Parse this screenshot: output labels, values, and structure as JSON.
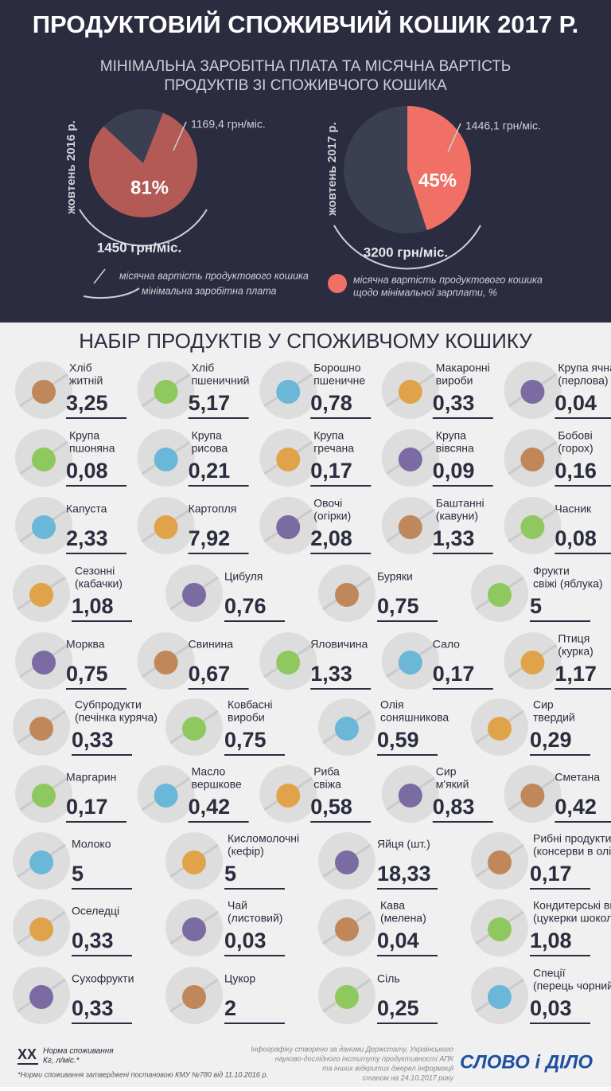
{
  "header": {
    "title": "ПРОДУКТОВИЙ СПОЖИВЧИЙ КОШИК 2017 Р.",
    "subtitle": [
      "МІНІМАЛЬНА ЗАРОБІТНА ПЛАТА ТА МІСЯЧНА ВАРТІСТЬ",
      "ПРОДУКТІВ ЗІ СПОЖИВЧОГО КОШИКА"
    ]
  },
  "pies": [
    {
      "period": "жовтень 2016 р.",
      "percent": 81,
      "percent_label": "81%",
      "basket_cost": "1169,4 грн/міс.",
      "min_wage": "1450 грн/міс."
    },
    {
      "period": "жовтень 2017 р.",
      "percent": 45,
      "percent_label": "45%",
      "basket_cost": "1446,1 грн/міс.",
      "min_wage": "3200 грн/міс."
    }
  ],
  "legend": {
    "arc_lines": [
      "місячна вартість продуктового кошика",
      "мінімальна заробітна плата"
    ],
    "dot_lines": [
      "місячна вартість продуктового кошика",
      "щодо  мінімальної зарплати, %"
    ]
  },
  "products": {
    "title": "НАБІР ПРОДУКТІВ У СПОЖИВЧОМУ КОШИКУ",
    "rows": [
      [
        {
          "name": [
            "Хліб",
            "житній"
          ],
          "value": "3,25"
        },
        {
          "name": [
            "Хліб",
            "пшеничний"
          ],
          "value": "5,17"
        },
        {
          "name": [
            "Борошно",
            "пшеничне"
          ],
          "value": "0,78"
        },
        {
          "name": [
            "Макаронні",
            "вироби"
          ],
          "value": "0,33"
        },
        {
          "name": [
            "Крупа ячна",
            "(перлова)"
          ],
          "value": "0,04"
        }
      ],
      [
        {
          "name": [
            "Крупа",
            "пшоняна"
          ],
          "value": "0,08"
        },
        {
          "name": [
            "Крупа",
            "рисова"
          ],
          "value": "0,21"
        },
        {
          "name": [
            "Крупа",
            "гречана"
          ],
          "value": "0,17"
        },
        {
          "name": [
            "Крупа",
            "вівсяна"
          ],
          "value": "0,09"
        },
        {
          "name": [
            "Бобові",
            "(горох)"
          ],
          "value": "0,16"
        }
      ],
      [
        {
          "name": [
            "Капуста"
          ],
          "value": "2,33"
        },
        {
          "name": [
            "Картопля"
          ],
          "value": "7,92"
        },
        {
          "name": [
            "Овочі",
            "(огірки)"
          ],
          "value": "2,08"
        },
        {
          "name": [
            "Баштанні",
            "(кавуни)"
          ],
          "value": "1,33"
        },
        {
          "name": [
            "Часник"
          ],
          "value": "0,08"
        }
      ],
      [
        {
          "name": [
            "Сезонні",
            "(кабачки)"
          ],
          "value": "1,08"
        },
        {
          "name": [
            "Цибуля"
          ],
          "value": "0,76"
        },
        {
          "name": [
            "Буряки"
          ],
          "value": "0,75"
        },
        {
          "name": [
            "Фрукти",
            "свіжі (яблука)"
          ],
          "value": "5"
        }
      ],
      [
        {
          "name": [
            "Морква"
          ],
          "value": "0,75"
        },
        {
          "name": [
            "Свинина"
          ],
          "value": "0,67"
        },
        {
          "name": [
            "Яловичина"
          ],
          "value": "1,33"
        },
        {
          "name": [
            "Сало"
          ],
          "value": "0,17"
        },
        {
          "name": [
            "Птиця",
            "(курка)"
          ],
          "value": "1,17"
        }
      ],
      [
        {
          "name": [
            "Субпродукти",
            "(печінка куряча)"
          ],
          "value": "0,33"
        },
        {
          "name": [
            "Ковбасні",
            "вироби"
          ],
          "value": "0,75"
        },
        {
          "name": [
            "Олія",
            "соняшникова"
          ],
          "value": "0,59"
        },
        {
          "name": [
            "Сир",
            "твердий"
          ],
          "value": "0,29"
        }
      ],
      [
        {
          "name": [
            "Маргарин"
          ],
          "value": "0,17"
        },
        {
          "name": [
            "Масло",
            "вершкове"
          ],
          "value": "0,42"
        },
        {
          "name": [
            "Риба",
            "свіжа"
          ],
          "value": "0,58"
        },
        {
          "name": [
            "Сир",
            "м'який"
          ],
          "value": "0,83"
        },
        {
          "name": [
            "Сметана"
          ],
          "value": "0,42"
        }
      ],
      [
        {
          "name": [
            "Молоко"
          ],
          "value": "5"
        },
        {
          "name": [
            "Кисломолочні",
            "(кефір)"
          ],
          "value": "5"
        },
        {
          "name": [
            "Яйця (шт.)"
          ],
          "value": "18,33"
        },
        {
          "name": [
            "Рибні продукти",
            "(консерви в олії)"
          ],
          "value": "0,17"
        }
      ],
      [
        {
          "name": [
            "Оселедці"
          ],
          "value": "0,33"
        },
        {
          "name": [
            "Чай",
            "(листовий)"
          ],
          "value": "0,03"
        },
        {
          "name": [
            "Кава",
            "(мелена)"
          ],
          "value": "0,04"
        },
        {
          "name": [
            "Кондитерські вироби",
            "(цукерки шоколадні)"
          ],
          "value": "1,08"
        }
      ],
      [
        {
          "name": [
            "Сухофрукти"
          ],
          "value": "0,33"
        },
        {
          "name": [
            "Цукор"
          ],
          "value": "2"
        },
        {
          "name": [
            "Сіль"
          ],
          "value": "0,25"
        },
        {
          "name": [
            "Спеції",
            "(перець чорний мелений)"
          ],
          "value": "0,03"
        }
      ]
    ]
  },
  "footer": {
    "unit_mark": "ХХ",
    "unit_lines": [
      "Норма споживання",
      "Кг, л/міс.*"
    ],
    "note": "*Норми споживання затверджені постановою КМУ №780 від 11.10.2016 р.",
    "source": [
      "Інфографіку створено за даними Держстату, Українського",
      "науково-дослідного інституту продуктивності АПК",
      "та інших відкритих джерел інформації",
      "станом на 24.10.2017 року"
    ],
    "logo": "СЛОВО і ДІЛО"
  }
}
